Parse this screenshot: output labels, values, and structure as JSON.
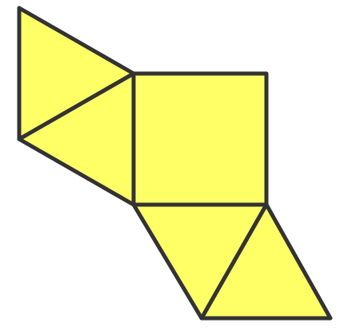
{
  "diagram": {
    "fill_color": "#ffff66",
    "stroke_color": "#333333",
    "faces": [
      {
        "name": "square-face",
        "shape": "square"
      },
      {
        "name": "left-triangle-upper",
        "shape": "triangle"
      },
      {
        "name": "left-triangle-lower",
        "shape": "triangle"
      },
      {
        "name": "bottom-triangle-left",
        "shape": "triangle"
      },
      {
        "name": "bottom-triangle-right",
        "shape": "triangle"
      }
    ]
  }
}
